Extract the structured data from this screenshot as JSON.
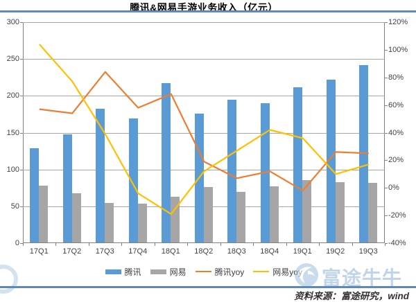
{
  "title": "腾讯&网易手游业务收入（亿元）",
  "colors": {
    "tencent_bar": "#5B9BD5",
    "netease_bar": "#A6A6A6",
    "tencent_yoy_line": "#ED7D31",
    "netease_yoy_line": "#FFC000",
    "rule_blue": "#5E88BA",
    "axis": "#808080",
    "gridline": "#A6A6A6",
    "watermark_blue": "#8FB3D9"
  },
  "chart_data": {
    "type": "bar+line combo, dual axis",
    "title": "腾讯&网易手游业务收入（亿元）",
    "categories": [
      "17Q1",
      "17Q2",
      "17Q3",
      "17Q4",
      "18Q1",
      "18Q2",
      "18Q3",
      "18Q4",
      "19Q1",
      "19Q2",
      "19Q3"
    ],
    "series": [
      {
        "name": "腾讯",
        "type": "bar",
        "axis": "left",
        "color": "#5B9BD5",
        "values": [
          129,
          148,
          182,
          169,
          217,
          176,
          195,
          190,
          212,
          222,
          242
        ]
      },
      {
        "name": "网易",
        "type": "bar",
        "axis": "left",
        "color": "#A6A6A6",
        "values": [
          78,
          68,
          55,
          54,
          63,
          76,
          70,
          77,
          86,
          83,
          82
        ]
      },
      {
        "name": "腾讯yoy",
        "type": "line",
        "axis": "right",
        "color": "#ED7D31",
        "values": [
          57,
          54,
          84,
          58,
          68,
          19,
          7,
          12,
          -2,
          26,
          25
        ]
      },
      {
        "name": "网易yoy",
        "type": "line",
        "axis": "right",
        "color": "#FFC000",
        "values": [
          104,
          77,
          39,
          -4,
          -19,
          12,
          27,
          42,
          36,
          10,
          17
        ]
      }
    ],
    "left_axis": {
      "min": 0,
      "max": 300,
      "step": 50,
      "tick_labels": [
        "0",
        "50",
        "100",
        "150",
        "200",
        "250",
        "300"
      ]
    },
    "right_axis": {
      "min": -40,
      "max": 120,
      "step": 20,
      "unit": "%",
      "tick_labels": [
        "-40%",
        "-20%",
        "0%",
        "20%",
        "40%",
        "60%",
        "80%",
        "100%",
        "120%"
      ]
    },
    "grid": true,
    "legend_position": "bottom"
  },
  "legend": {
    "items": [
      {
        "label": "腾讯",
        "swatch": "bar",
        "color": "#5B9BD5"
      },
      {
        "label": "网易",
        "swatch": "bar",
        "color": "#A6A6A6"
      },
      {
        "label": "腾讯yoy",
        "swatch": "line",
        "color": "#ED7D31"
      },
      {
        "label": "网易yoy",
        "swatch": "line",
        "color": "#FFC000"
      }
    ]
  },
  "watermark": {
    "text": "富途牛牛"
  },
  "footer": {
    "source_text": "资料来源：富途研究，wind"
  }
}
